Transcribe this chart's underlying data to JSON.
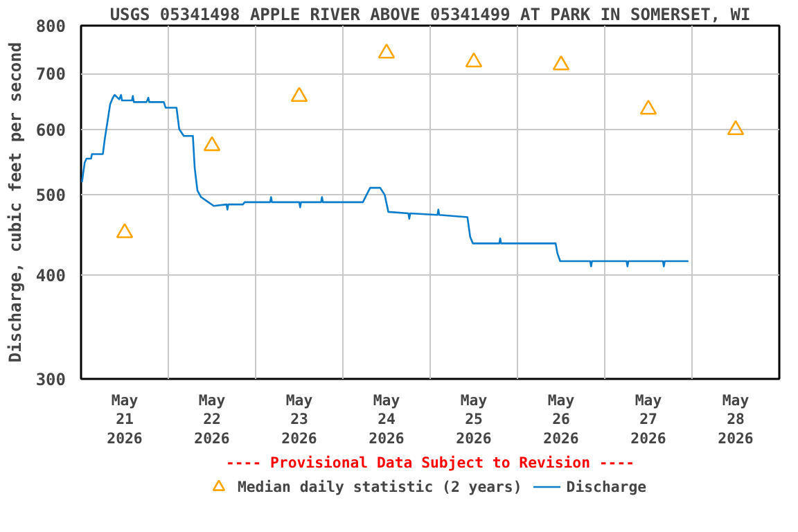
{
  "chart_data": {
    "type": "line",
    "title": "USGS 05341498 APPLE RIVER ABOVE 05341499 AT PARK IN SOMERSET, WI",
    "ylabel": "Discharge, cubic feet per second",
    "annotations": [
      "---- Provisional Data Subject to Revision ----"
    ],
    "log": true,
    "ylim": [
      300,
      800
    ],
    "yticks": [
      300,
      400,
      500,
      600,
      700,
      800
    ],
    "xlim": [
      "2026-05-21T00:00",
      "2026-05-29T00:00"
    ],
    "xticks": [
      {
        "value": "2026-05-21T12:00",
        "label": "May\n21\n2026"
      },
      {
        "value": "2026-05-22T12:00",
        "label": "May\n22\n2026"
      },
      {
        "value": "2026-05-23T12:00",
        "label": "May\n23\n2026"
      },
      {
        "value": "2026-05-24T12:00",
        "label": "May\n24\n2026"
      },
      {
        "value": "2026-05-25T12:00",
        "label": "May\n25\n2026"
      },
      {
        "value": "2026-05-26T12:00",
        "label": "May\n26\n2026"
      },
      {
        "value": "2026-05-27T12:00",
        "label": "May\n27\n2026"
      },
      {
        "value": "2026-05-28T12:00",
        "label": "May\n28\n2026"
      },
      {
        "value": "2026-05-22T00:00",
        "label": null
      },
      {
        "value": "2026-05-23T00:00",
        "label": null
      },
      {
        "value": "2026-05-24T00:00",
        "label": null
      },
      {
        "value": "2026-05-25T00:00",
        "label": null
      },
      {
        "value": "2026-05-26T00:00",
        "label": null
      },
      {
        "value": "2026-05-27T00:00",
        "label": null
      },
      {
        "value": "2026-05-28T00:00",
        "label": null
      }
    ],
    "grid": true,
    "legend": "bottom",
    "series": [
      {
        "name": "Median daily statistic (2 years)",
        "type": "scatter",
        "marker": "triangle",
        "color": "#ffa500",
        "x": [
          "2026-05-21T12:00",
          "2026-05-22T12:00",
          "2026-05-23T12:00",
          "2026-05-24T12:00",
          "2026-05-25T12:00",
          "2026-05-26T12:00",
          "2026-05-27T12:00",
          "2026-05-28T12:00"
        ],
        "values": [
          450,
          573,
          657,
          741,
          723,
          717,
          634,
          599
        ]
      },
      {
        "name": "Discharge",
        "color": "#0a7ccc",
        "x": [
          "2026-05-21T00:15",
          "2026-05-21T01:00",
          "2026-05-21T01:30",
          "2026-05-21T02:45",
          "2026-05-21T03:00",
          "2026-05-21T06:00",
          "2026-05-21T06:30",
          "2026-05-21T07:15",
          "2026-05-21T08:00",
          "2026-05-21T08:45",
          "2026-05-21T09:15",
          "2026-05-21T10:30",
          "2026-05-21T11:00",
          "2026-05-21T11:15",
          "2026-05-21T14:00",
          "2026-05-21T14:15",
          "2026-05-21T14:30",
          "2026-05-21T18:00",
          "2026-05-21T18:30",
          "2026-05-21T18:45",
          "2026-05-21T22:45",
          "2026-05-21T23:15",
          "2026-05-22T02:15",
          "2026-05-22T03:00",
          "2026-05-22T04:15",
          "2026-05-22T06:45",
          "2026-05-22T07:15",
          "2026-05-22T08:00",
          "2026-05-22T09:00",
          "2026-05-22T11:00",
          "2026-05-22T12:30",
          "2026-05-22T16:00",
          "2026-05-22T16:15",
          "2026-05-22T16:30",
          "2026-05-22T20:30",
          "2026-05-22T21:00",
          "2026-05-23T04:00",
          "2026-05-23T04:15",
          "2026-05-23T04:30",
          "2026-05-23T12:00",
          "2026-05-23T12:15",
          "2026-05-23T12:30",
          "2026-05-23T18:00",
          "2026-05-23T18:15",
          "2026-05-23T18:30",
          "2026-05-24T05:30",
          "2026-05-24T06:30",
          "2026-05-24T07:30",
          "2026-05-24T10:15",
          "2026-05-24T11:30",
          "2026-05-24T12:30",
          "2026-05-24T18:00",
          "2026-05-24T18:15",
          "2026-05-24T18:30",
          "2026-05-25T02:00",
          "2026-05-25T02:15",
          "2026-05-25T02:30",
          "2026-05-25T10:15",
          "2026-05-25T11:00",
          "2026-05-25T11:45",
          "2026-05-25T19:00",
          "2026-05-25T19:15",
          "2026-05-25T19:30",
          "2026-05-26T10:30",
          "2026-05-26T11:00",
          "2026-05-26T11:45",
          "2026-05-26T20:00",
          "2026-05-26T20:15",
          "2026-05-26T20:30",
          "2026-05-27T06:00",
          "2026-05-27T06:15",
          "2026-05-27T06:30",
          "2026-05-27T16:00",
          "2026-05-27T16:15",
          "2026-05-27T16:30",
          "2026-05-27T23:00"
        ],
        "values": [
          518,
          547,
          553,
          553,
          560,
          560,
          583,
          612,
          643,
          655,
          660,
          652,
          660,
          650,
          650,
          658,
          647,
          647,
          655,
          647,
          647,
          637,
          637,
          600,
          589,
          589,
          539,
          506,
          497,
          490,
          485,
          487,
          480,
          487,
          487,
          490,
          490,
          497,
          490,
          490,
          483,
          490,
          490,
          497,
          490,
          490,
          500,
          510,
          510,
          500,
          477,
          475,
          468,
          475,
          473,
          480,
          473,
          470,
          445,
          437,
          437,
          443,
          437,
          437,
          425,
          416,
          416,
          410,
          416,
          416,
          410,
          416,
          416,
          410,
          416,
          416
        ]
      }
    ]
  }
}
